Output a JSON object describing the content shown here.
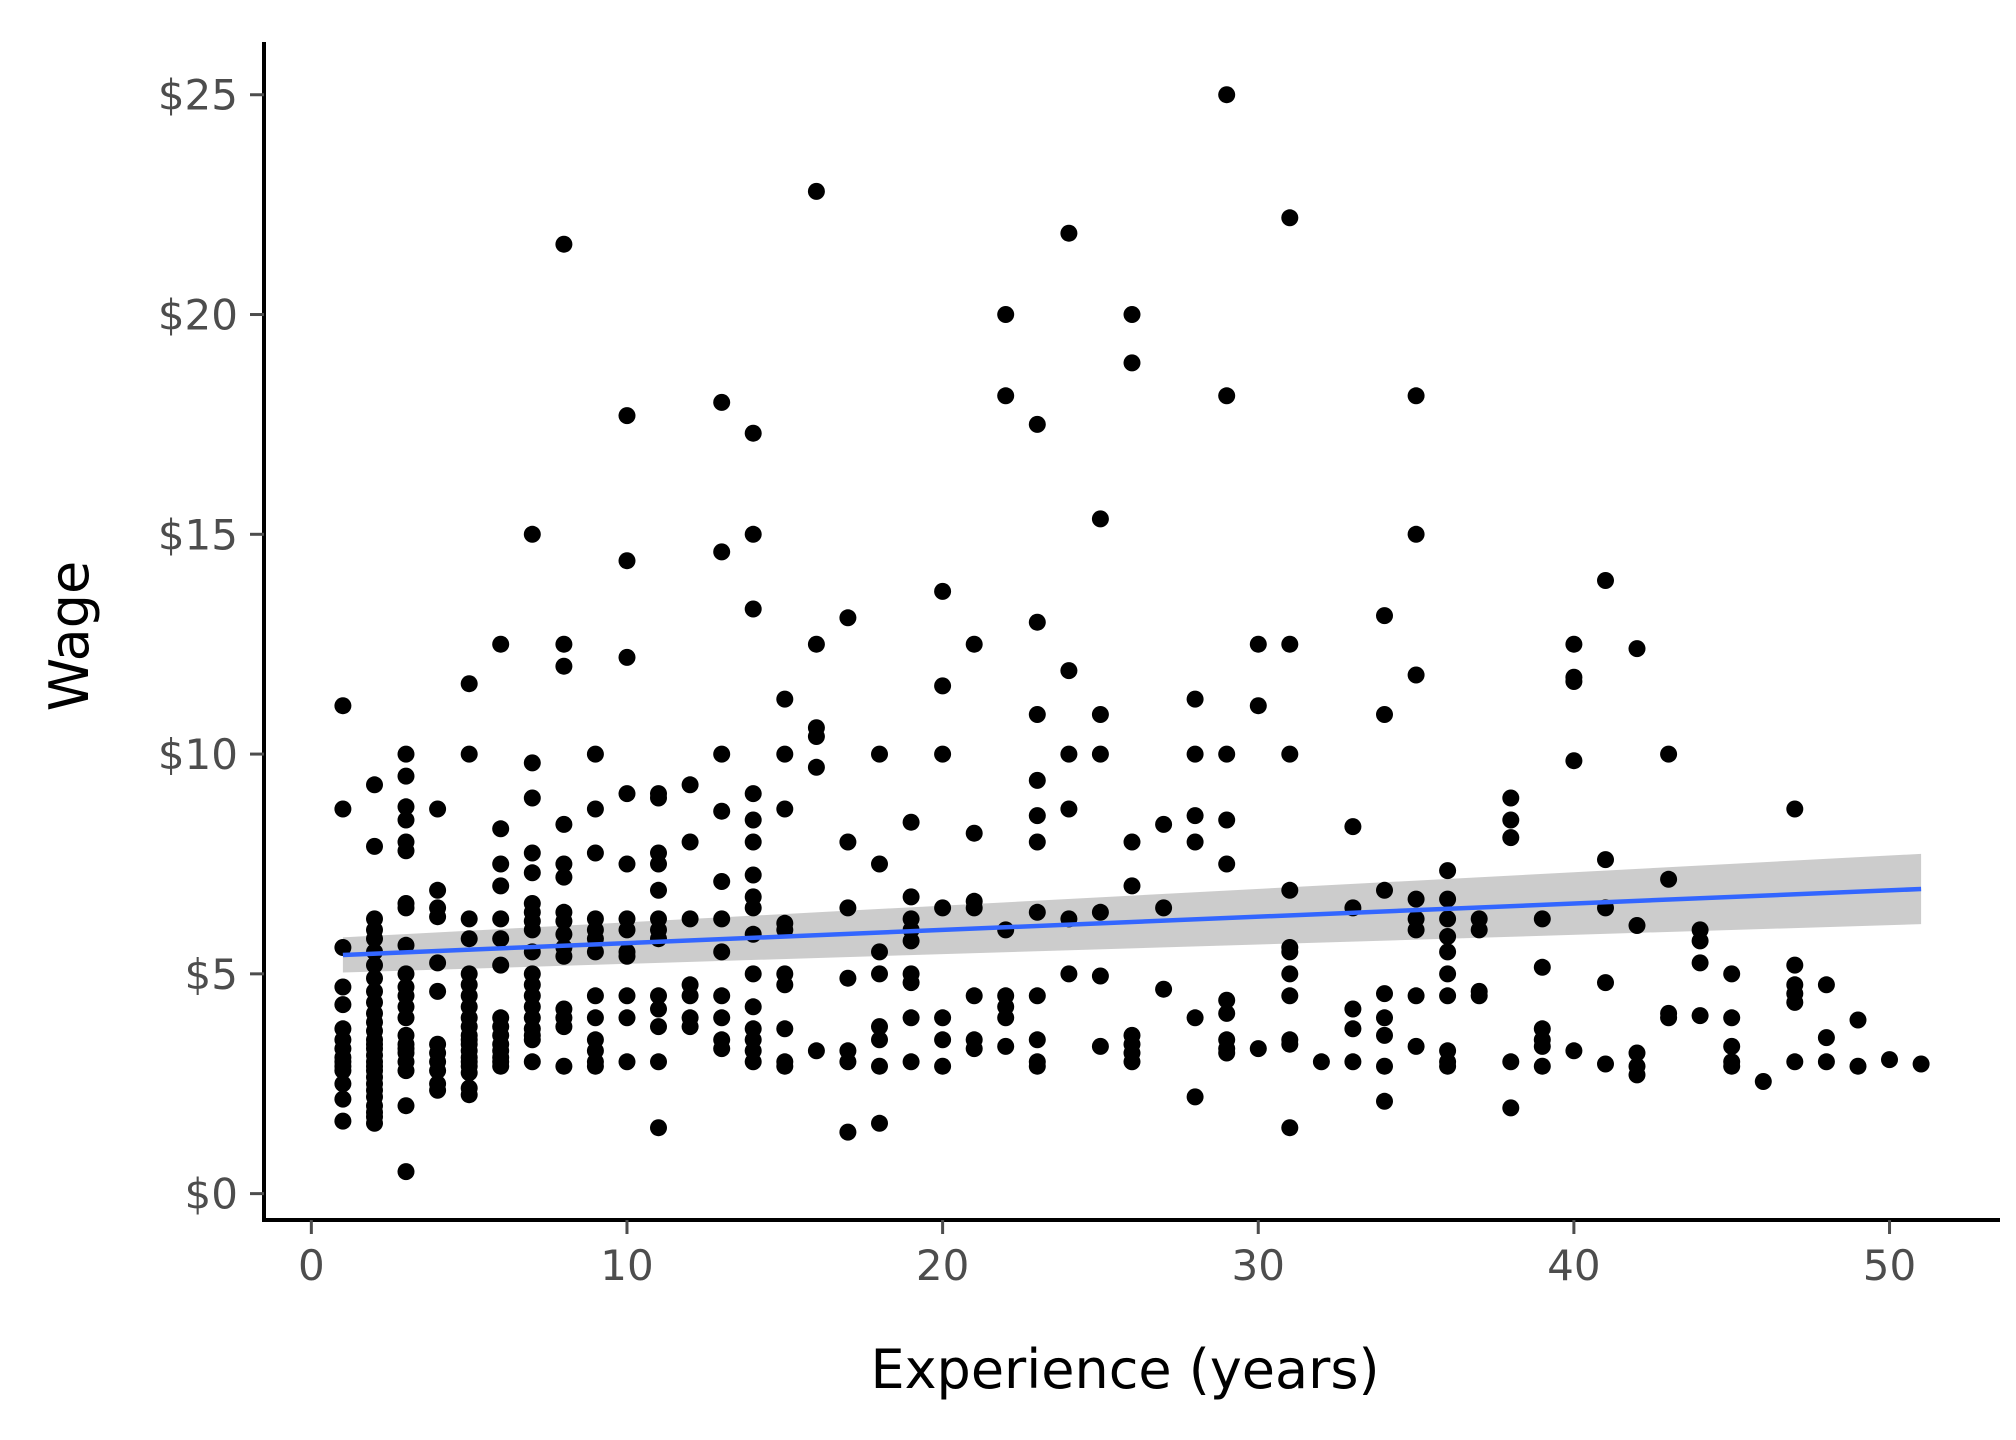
{
  "chart_data": {
    "type": "scatter",
    "xlabel": "Experience (years)",
    "ylabel": "Wage",
    "xlim": [
      -1.5,
      53.5
    ],
    "ylim": [
      -0.6,
      26.2
    ],
    "x_ticks": [
      0,
      10,
      20,
      30,
      40,
      50
    ],
    "x_tick_labels": [
      "0",
      "10",
      "20",
      "30",
      "40",
      "50"
    ],
    "y_ticks": [
      0,
      5,
      10,
      15,
      20,
      25
    ],
    "y_tick_labels": [
      "$0",
      "$5",
      "$10",
      "$15",
      "$20",
      "$25"
    ],
    "grid": false,
    "colors": {
      "points": "#000000",
      "fit_line": "#3366FF",
      "confidence_band": "#999999",
      "axis": "#000000",
      "tick_text": "#4d4d4d"
    },
    "fit": {
      "method": "linear",
      "x": [
        1,
        51
      ],
      "y": [
        5.43,
        6.93
      ],
      "ci_lower": [
        5.03,
        6.13
      ],
      "ci_upper": [
        5.83,
        7.73
      ]
    },
    "series": [
      {
        "x": [
          1,
          1,
          1,
          1,
          1,
          1,
          1,
          1,
          1,
          1,
          1,
          1,
          1,
          1,
          1,
          2,
          2,
          2,
          2,
          2,
          2,
          2,
          2,
          2,
          2,
          2,
          2,
          2,
          2,
          2,
          2,
          2,
          2,
          2,
          2,
          2,
          2,
          2,
          2,
          2,
          2,
          2,
          2,
          3,
          3,
          3,
          3,
          3,
          3,
          3,
          3,
          3,
          3,
          3,
          3,
          3,
          3,
          3,
          3,
          3,
          3,
          3,
          3,
          3,
          3,
          4,
          4,
          4,
          4,
          4,
          4,
          4,
          4,
          4,
          4,
          4,
          4,
          5,
          5,
          5,
          5,
          5,
          5,
          5,
          5,
          5,
          5,
          5,
          5,
          5,
          5,
          5,
          5,
          5,
          5,
          5,
          5,
          6,
          6,
          6,
          6,
          6,
          6,
          6,
          6,
          6,
          6,
          6,
          6,
          6,
          6,
          6,
          7,
          7,
          7,
          7,
          7,
          7,
          7,
          7,
          7,
          7,
          7,
          7,
          7,
          7,
          7,
          7,
          7,
          7,
          7,
          8,
          8,
          8,
          8,
          8,
          8,
          8,
          8,
          8,
          8,
          8,
          8,
          8,
          8,
          8,
          9,
          9,
          9,
          9,
          9,
          9,
          9,
          9,
          9,
          9,
          9,
          9,
          9,
          10,
          10,
          10,
          10,
          10,
          10,
          10,
          10,
          10,
          10,
          10,
          10,
          11,
          11,
          11,
          11,
          11,
          11,
          11,
          11,
          11,
          11,
          11,
          11,
          11,
          12,
          12,
          12,
          12,
          12,
          12,
          12,
          13,
          13,
          13,
          13,
          13,
          13,
          13,
          13,
          13,
          13,
          13,
          14,
          14,
          14,
          14,
          14,
          14,
          14,
          14,
          14,
          14,
          14,
          14,
          14,
          14,
          14,
          14,
          15,
          15,
          15,
          15,
          15,
          15,
          15,
          15,
          15,
          15,
          16,
          16,
          16,
          16,
          16,
          16,
          17,
          17,
          17,
          17,
          17,
          17,
          17,
          18,
          18,
          18,
          18,
          18,
          18,
          18,
          18,
          19,
          19,
          19,
          19,
          19,
          19,
          19,
          19,
          19,
          20,
          20,
          20,
          20,
          20,
          20,
          20,
          21,
          21,
          21,
          21,
          21,
          21,
          21,
          22,
          22,
          22,
          22,
          22,
          22,
          22,
          23,
          23,
          23,
          23,
          23,
          23,
          23,
          23,
          23,
          23,
          23,
          24,
          24,
          24,
          24,
          24,
          24,
          25,
          25,
          25,
          25,
          25,
          25,
          26,
          26,
          26,
          26,
          26,
          26,
          26,
          26,
          27,
          27,
          27,
          28,
          28,
          28,
          28,
          28,
          28,
          29,
          29,
          29,
          29,
          29,
          29,
          29,
          29,
          29,
          29,
          30,
          30,
          30,
          31,
          31,
          31,
          31,
          31,
          31,
          31,
          31,
          31,
          31,
          31,
          32,
          33,
          33,
          33,
          33,
          33,
          34,
          34,
          34,
          34,
          34,
          34,
          34,
          34,
          35,
          35,
          35,
          35,
          35,
          35,
          35,
          35,
          36,
          36,
          36,
          36,
          36,
          36,
          36,
          36,
          36,
          36,
          37,
          37,
          37,
          37,
          38,
          38,
          38,
          38,
          38,
          39,
          39,
          39,
          39,
          39,
          39,
          40,
          40,
          40,
          40,
          40,
          41,
          41,
          41,
          41,
          41,
          42,
          42,
          42,
          42,
          42,
          43,
          43,
          43,
          43,
          44,
          44,
          44,
          44,
          45,
          45,
          45,
          45,
          45,
          46,
          47,
          47,
          47,
          47,
          47,
          47,
          48,
          48,
          48,
          49,
          49,
          50,
          51
        ],
        "y": [
          11.1,
          8.75,
          5.6,
          4.7,
          4.3,
          3.75,
          3.5,
          3.3,
          3.1,
          3.0,
          2.9,
          2.8,
          2.5,
          2.15,
          1.65,
          9.3,
          7.9,
          6.25,
          6.0,
          5.8,
          5.5,
          5.2,
          4.9,
          4.6,
          4.35,
          4.1,
          3.9,
          3.7,
          3.5,
          3.4,
          3.3,
          3.15,
          3.0,
          2.9,
          2.8,
          2.65,
          2.5,
          2.35,
          2.2,
          2.0,
          1.85,
          1.75,
          1.6,
          10.0,
          9.5,
          8.8,
          8.5,
          8.0,
          7.8,
          6.6,
          6.5,
          5.65,
          5.0,
          4.7,
          4.5,
          4.25,
          4.0,
          3.6,
          3.4,
          3.3,
          3.2,
          3.0,
          2.8,
          2.0,
          0.5,
          8.75,
          6.9,
          6.5,
          6.3,
          5.25,
          4.6,
          3.4,
          3.2,
          3.0,
          2.8,
          2.5,
          2.35,
          11.6,
          10.0,
          6.25,
          5.8,
          5.0,
          4.75,
          4.5,
          4.25,
          4.0,
          3.8,
          3.6,
          3.5,
          3.4,
          3.25,
          3.1,
          3.0,
          2.9,
          2.75,
          2.4,
          2.25,
          12.5,
          8.3,
          7.5,
          7.0,
          6.25,
          5.8,
          5.2,
          4.0,
          3.8,
          3.6,
          3.4,
          3.25,
          3.1,
          3.0,
          2.9,
          15.0,
          9.8,
          9.0,
          7.75,
          7.3,
          6.6,
          6.4,
          6.2,
          6.0,
          5.5,
          5.0,
          4.75,
          4.5,
          4.25,
          4.0,
          3.75,
          3.6,
          3.5,
          3.0,
          21.6,
          12.5,
          12.0,
          8.4,
          7.5,
          7.2,
          6.4,
          6.2,
          5.9,
          5.6,
          5.4,
          4.2,
          4.0,
          3.8,
          2.9,
          10.0,
          8.75,
          7.75,
          6.25,
          6.0,
          5.8,
          5.5,
          4.5,
          4.0,
          3.5,
          3.25,
          3.0,
          2.9,
          17.7,
          14.4,
          12.2,
          9.1,
          7.5,
          6.25,
          6.0,
          5.5,
          5.4,
          4.5,
          4.0,
          3.0,
          9.1,
          9.0,
          7.75,
          7.5,
          6.9,
          6.25,
          6.0,
          5.8,
          4.5,
          4.2,
          3.8,
          3.0,
          1.5,
          9.3,
          8.0,
          6.25,
          4.75,
          4.5,
          4.0,
          3.8,
          18.0,
          14.6,
          10.0,
          8.7,
          7.1,
          6.25,
          5.5,
          4.5,
          4.0,
          3.5,
          3.3,
          17.3,
          15.0,
          13.3,
          9.1,
          8.5,
          8.0,
          7.25,
          6.75,
          6.5,
          5.9,
          5.0,
          4.25,
          3.75,
          3.5,
          3.25,
          3.0,
          11.25,
          10.0,
          8.75,
          6.15,
          6.0,
          5.0,
          4.75,
          3.75,
          3.0,
          2.9,
          22.8,
          12.5,
          10.6,
          10.4,
          9.7,
          3.25,
          13.1,
          8.0,
          6.5,
          4.9,
          3.25,
          3.0,
          1.4,
          10.0,
          7.5,
          5.5,
          5.0,
          3.8,
          3.5,
          2.9,
          1.6,
          8.45,
          6.75,
          6.25,
          6.0,
          5.75,
          5.0,
          4.8,
          4.0,
          3.0,
          13.7,
          11.55,
          10.0,
          6.5,
          4.0,
          3.5,
          2.9,
          12.5,
          8.2,
          6.65,
          6.5,
          4.5,
          3.5,
          3.3,
          20.0,
          18.15,
          6.0,
          4.5,
          4.25,
          4.0,
          3.35,
          17.5,
          13.0,
          10.9,
          9.4,
          8.6,
          8.0,
          6.4,
          4.5,
          3.5,
          3.0,
          2.9,
          21.85,
          11.9,
          10.0,
          8.75,
          6.25,
          5.0,
          15.35,
          10.9,
          10.0,
          6.4,
          4.95,
          3.35,
          20.0,
          18.9,
          8.0,
          7.0,
          3.6,
          3.4,
          3.2,
          3.0,
          8.4,
          6.5,
          4.65,
          11.25,
          10.0,
          8.6,
          8.0,
          4.0,
          2.2,
          25.0,
          18.15,
          10.0,
          8.5,
          7.5,
          4.4,
          4.1,
          3.5,
          3.3,
          3.2,
          12.5,
          11.1,
          3.3,
          22.2,
          12.5,
          10.0,
          6.9,
          5.6,
          5.5,
          5.0,
          4.5,
          3.5,
          3.4,
          1.5,
          3.0,
          8.35,
          6.5,
          4.2,
          3.75,
          3.0,
          13.15,
          10.9,
          6.9,
          4.55,
          4.0,
          3.6,
          2.9,
          2.1,
          18.15,
          15.0,
          11.8,
          6.7,
          6.25,
          6.0,
          4.5,
          3.35,
          7.35,
          6.7,
          6.25,
          5.85,
          5.5,
          5.0,
          4.5,
          3.25,
          3.0,
          2.9,
          6.25,
          6.0,
          4.6,
          4.5,
          9.0,
          8.5,
          8.1,
          3.0,
          1.95,
          6.25,
          5.15,
          3.75,
          3.5,
          3.35,
          2.9,
          12.5,
          11.75,
          11.65,
          9.85,
          3.25,
          13.95,
          7.6,
          6.5,
          4.8,
          2.95,
          12.4,
          6.1,
          3.2,
          2.9,
          2.7,
          10.0,
          7.15,
          4.1,
          4.0,
          6.0,
          5.75,
          5.25,
          4.05,
          5.0,
          4.0,
          3.35,
          3.0,
          2.9,
          2.55,
          8.75,
          5.2,
          4.75,
          4.55,
          4.35,
          3.0,
          4.75,
          3.55,
          3.0,
          3.95,
          2.9,
          3.05,
          2.95
        ]
      }
    ]
  }
}
